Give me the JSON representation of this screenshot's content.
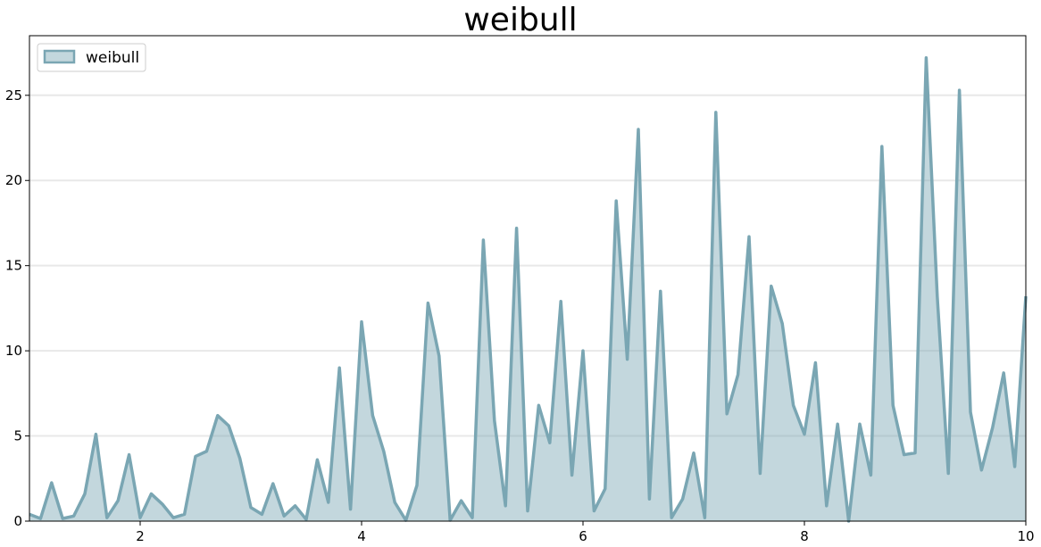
{
  "chart_data": {
    "type": "area",
    "title": "weibull",
    "xlabel": "",
    "ylabel": "",
    "xlim": [
      1,
      10
    ],
    "ylim": [
      0,
      28.5
    ],
    "x_ticks": [
      2,
      4,
      6,
      8,
      10
    ],
    "y_ticks": [
      0,
      5,
      10,
      15,
      20,
      25
    ],
    "grid": "y-axis, light",
    "legend": "top-left",
    "series": [
      {
        "name": "weibull",
        "color": "#7aa6b3",
        "x": [
          1.0,
          1.1,
          1.2,
          1.3,
          1.4,
          1.5,
          1.6,
          1.7,
          1.8,
          1.9,
          2.0,
          2.1,
          2.2,
          2.3,
          2.4,
          2.5,
          2.6,
          2.7,
          2.8,
          2.9,
          3.0,
          3.1,
          3.2,
          3.3,
          3.4,
          3.5,
          3.6,
          3.7,
          3.8,
          3.9,
          4.0,
          4.1,
          4.2,
          4.3,
          4.4,
          4.5,
          4.6,
          4.7,
          4.8,
          4.9,
          5.0,
          5.1,
          5.2,
          5.3,
          5.4,
          5.5,
          5.6,
          5.7,
          5.8,
          5.9,
          6.0,
          6.1,
          6.2,
          6.3,
          6.4,
          6.5,
          6.6,
          6.7,
          6.8,
          6.9,
          7.0,
          7.1,
          7.2,
          7.3,
          7.4,
          7.5,
          7.6,
          7.7,
          7.8,
          7.9,
          8.0,
          8.1,
          8.2,
          8.3,
          8.4,
          8.5,
          8.6,
          8.7,
          8.8,
          8.9,
          9.0,
          9.1,
          9.2,
          9.3,
          9.4,
          9.5,
          9.6,
          9.7,
          9.8,
          9.9,
          10.0
        ],
        "values": [
          0.4,
          0.15,
          2.25,
          0.15,
          0.3,
          1.6,
          5.1,
          0.2,
          1.2,
          3.9,
          0.2,
          1.6,
          1.0,
          0.2,
          0.4,
          3.8,
          4.1,
          6.2,
          5.6,
          3.7,
          0.8,
          0.4,
          2.2,
          0.3,
          0.9,
          0.1,
          3.6,
          1.1,
          9.0,
          0.7,
          11.7,
          6.2,
          4.1,
          1.1,
          0.05,
          2.1,
          12.8,
          9.7,
          0.05,
          1.2,
          0.2,
          16.5,
          5.9,
          0.9,
          17.2,
          0.6,
          6.8,
          4.6,
          12.9,
          2.7,
          10.0,
          0.6,
          1.9,
          18.8,
          9.5,
          23.0,
          1.3,
          13.5,
          0.2,
          1.3,
          4.0,
          0.2,
          24.0,
          6.3,
          8.6,
          16.7,
          2.8,
          13.8,
          11.6,
          6.8,
          5.1,
          9.3,
          0.9,
          5.7,
          0.0,
          5.7,
          2.7,
          22.0,
          6.8,
          3.9,
          4.0,
          27.2,
          13.2,
          2.8,
          25.3,
          6.4,
          3.0,
          5.5,
          8.7,
          3.2,
          13.2
        ]
      }
    ]
  }
}
